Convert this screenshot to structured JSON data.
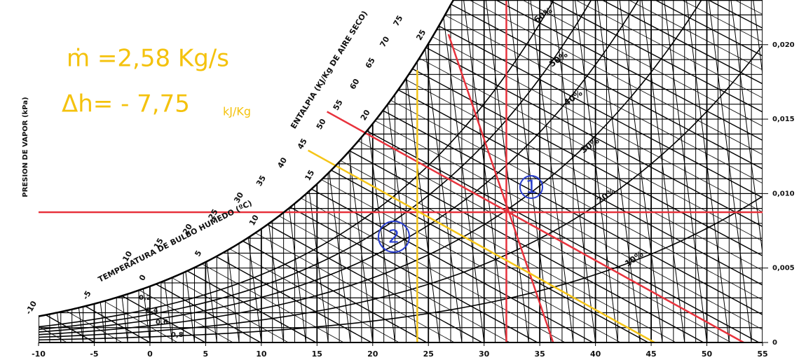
{
  "chart_data": {
    "type": "psychrometric",
    "xlim": [
      -10,
      55
    ],
    "xticks": [
      -10,
      -5,
      0,
      5,
      10,
      15,
      20,
      25,
      30,
      35,
      40,
      45,
      50,
      55
    ],
    "y2lim": [
      0,
      0.023
    ],
    "y2ticks": [
      0,
      {
        "value": 0.005,
        "label": "0,005"
      },
      {
        "value": 0.01,
        "label": "0,010"
      },
      {
        "value": 0.015,
        "label": "0,015"
      },
      {
        "value": 0.02,
        "label": "0,020"
      }
    ],
    "y_label": "PRESION DE VAPOR (kPa)",
    "wet_bulb_label": "TEMPERATURA DE BULBO HUMEDO (ºC)",
    "wet_bulb_ticks": [
      -10,
      -5,
      0,
      5,
      10,
      15,
      20,
      25
    ],
    "enthalpy_label": "ENTALPIA (KJ/Kg DE AIRE SECO)",
    "enthalpy_ticks": [
      10,
      15,
      20,
      25,
      30,
      35,
      40,
      45,
      50,
      55,
      60,
      65,
      70,
      75
    ],
    "rh_labels": [
      {
        "value": 10,
        "label": "10%"
      },
      {
        "value": 20,
        "label": "20%"
      },
      {
        "value": 30,
        "label": "30%"
      },
      {
        "value": 40,
        "label": "40%"
      },
      {
        "value": 50,
        "label": "50%"
      },
      {
        "value": 60,
        "label": "60%"
      }
    ],
    "vapor_pressure_ticks": [
      {
        "value": 0.2,
        "label": "0,2"
      },
      {
        "value": 0.4,
        "label": "0,4"
      },
      {
        "value": 0.6,
        "label": "0,6"
      },
      {
        "value": 0.8,
        "label": "0,8"
      }
    ],
    "annotations": [
      "ṁ =2,58 Kg/s",
      "Δh= - 7,75",
      "kJ/Kg",
      "1",
      "2"
    ],
    "series": [
      {
        "color": "#e8323c",
        "x": [
          -10,
          55
        ],
        "values": [
          0.00875,
          0.00875
        ],
        "axis": "y2"
      },
      {
        "color": "#e8323c",
        "x": [
          32,
          32
        ],
        "values": [
          0.023,
          0
        ],
        "axis": "y2"
      },
      {
        "color": "#e8323c",
        "x": [
          15.9,
          53.3
        ],
        "values": [
          0.0155,
          0
        ],
        "axis": "y2"
      },
      {
        "color": "#e8323c",
        "x": [
          26.8,
          36.2
        ],
        "values": [
          0.0207,
          0
        ],
        "axis": "y2"
      },
      {
        "color": "#f5c518",
        "x": [
          24,
          24
        ],
        "values": [
          0.0183,
          0
        ],
        "axis": "y2"
      },
      {
        "color": "#f5c518",
        "x": [
          14.2,
          45.3
        ],
        "values": [
          0.0129,
          0
        ],
        "axis": "y2"
      }
    ]
  }
}
